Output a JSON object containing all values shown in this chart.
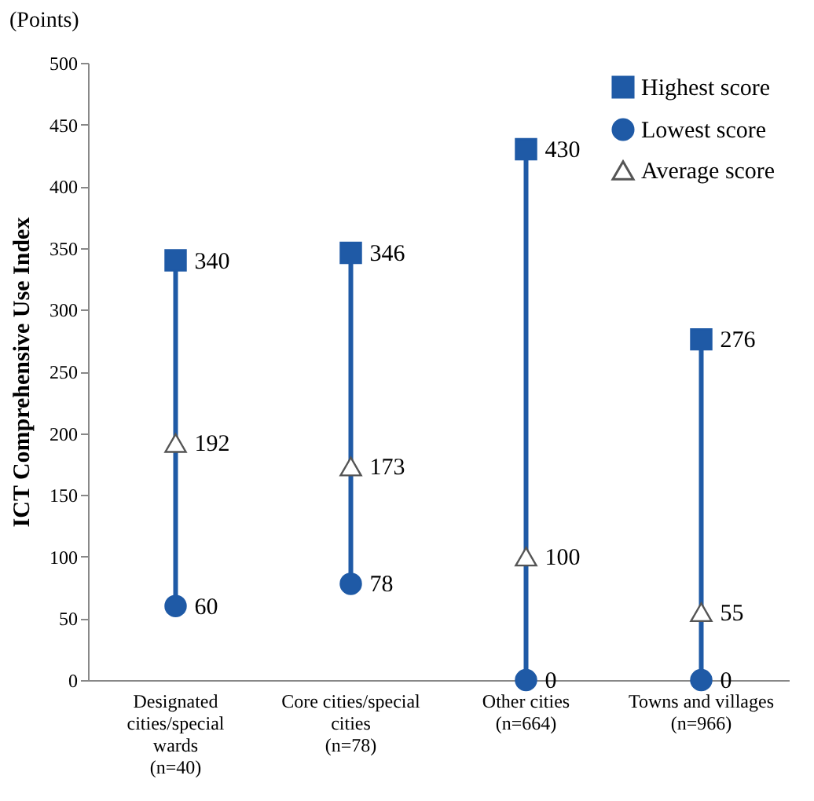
{
  "chart_data": {
    "type": "scatter",
    "ylabel": "ICT Comprehensive Use Index",
    "annotations": [
      "(Points)"
    ],
    "categories": [
      "Designated cities/special wards (n=40)",
      "Core cities/special cities (n=78)",
      "Other cities (n=664)",
      "Towns and villages (n=966)"
    ],
    "ylim": [
      0,
      500
    ],
    "yticks": [
      0,
      50,
      100,
      150,
      200,
      250,
      300,
      350,
      400,
      450,
      500
    ],
    "grid": false,
    "legend": "top right",
    "series": [
      {
        "name": "Highest score",
        "color": "#1f5aa6",
        "marker": "square",
        "values": [
          340,
          346,
          430,
          276
        ],
        "value_labels": [
          "340",
          "346",
          "430",
          "276"
        ]
      },
      {
        "name": "Lowest score",
        "color": "#1f5aa6",
        "marker": "circle",
        "values": [
          60,
          78,
          0,
          0
        ],
        "value_labels": [
          "60",
          "78",
          "0",
          "0"
        ]
      },
      {
        "name": "Average score",
        "color": "#ffffff",
        "marker": "triangle",
        "values": [
          192,
          173,
          100,
          55
        ],
        "value_labels": [
          "192",
          "173",
          "100",
          "55"
        ]
      }
    ]
  }
}
